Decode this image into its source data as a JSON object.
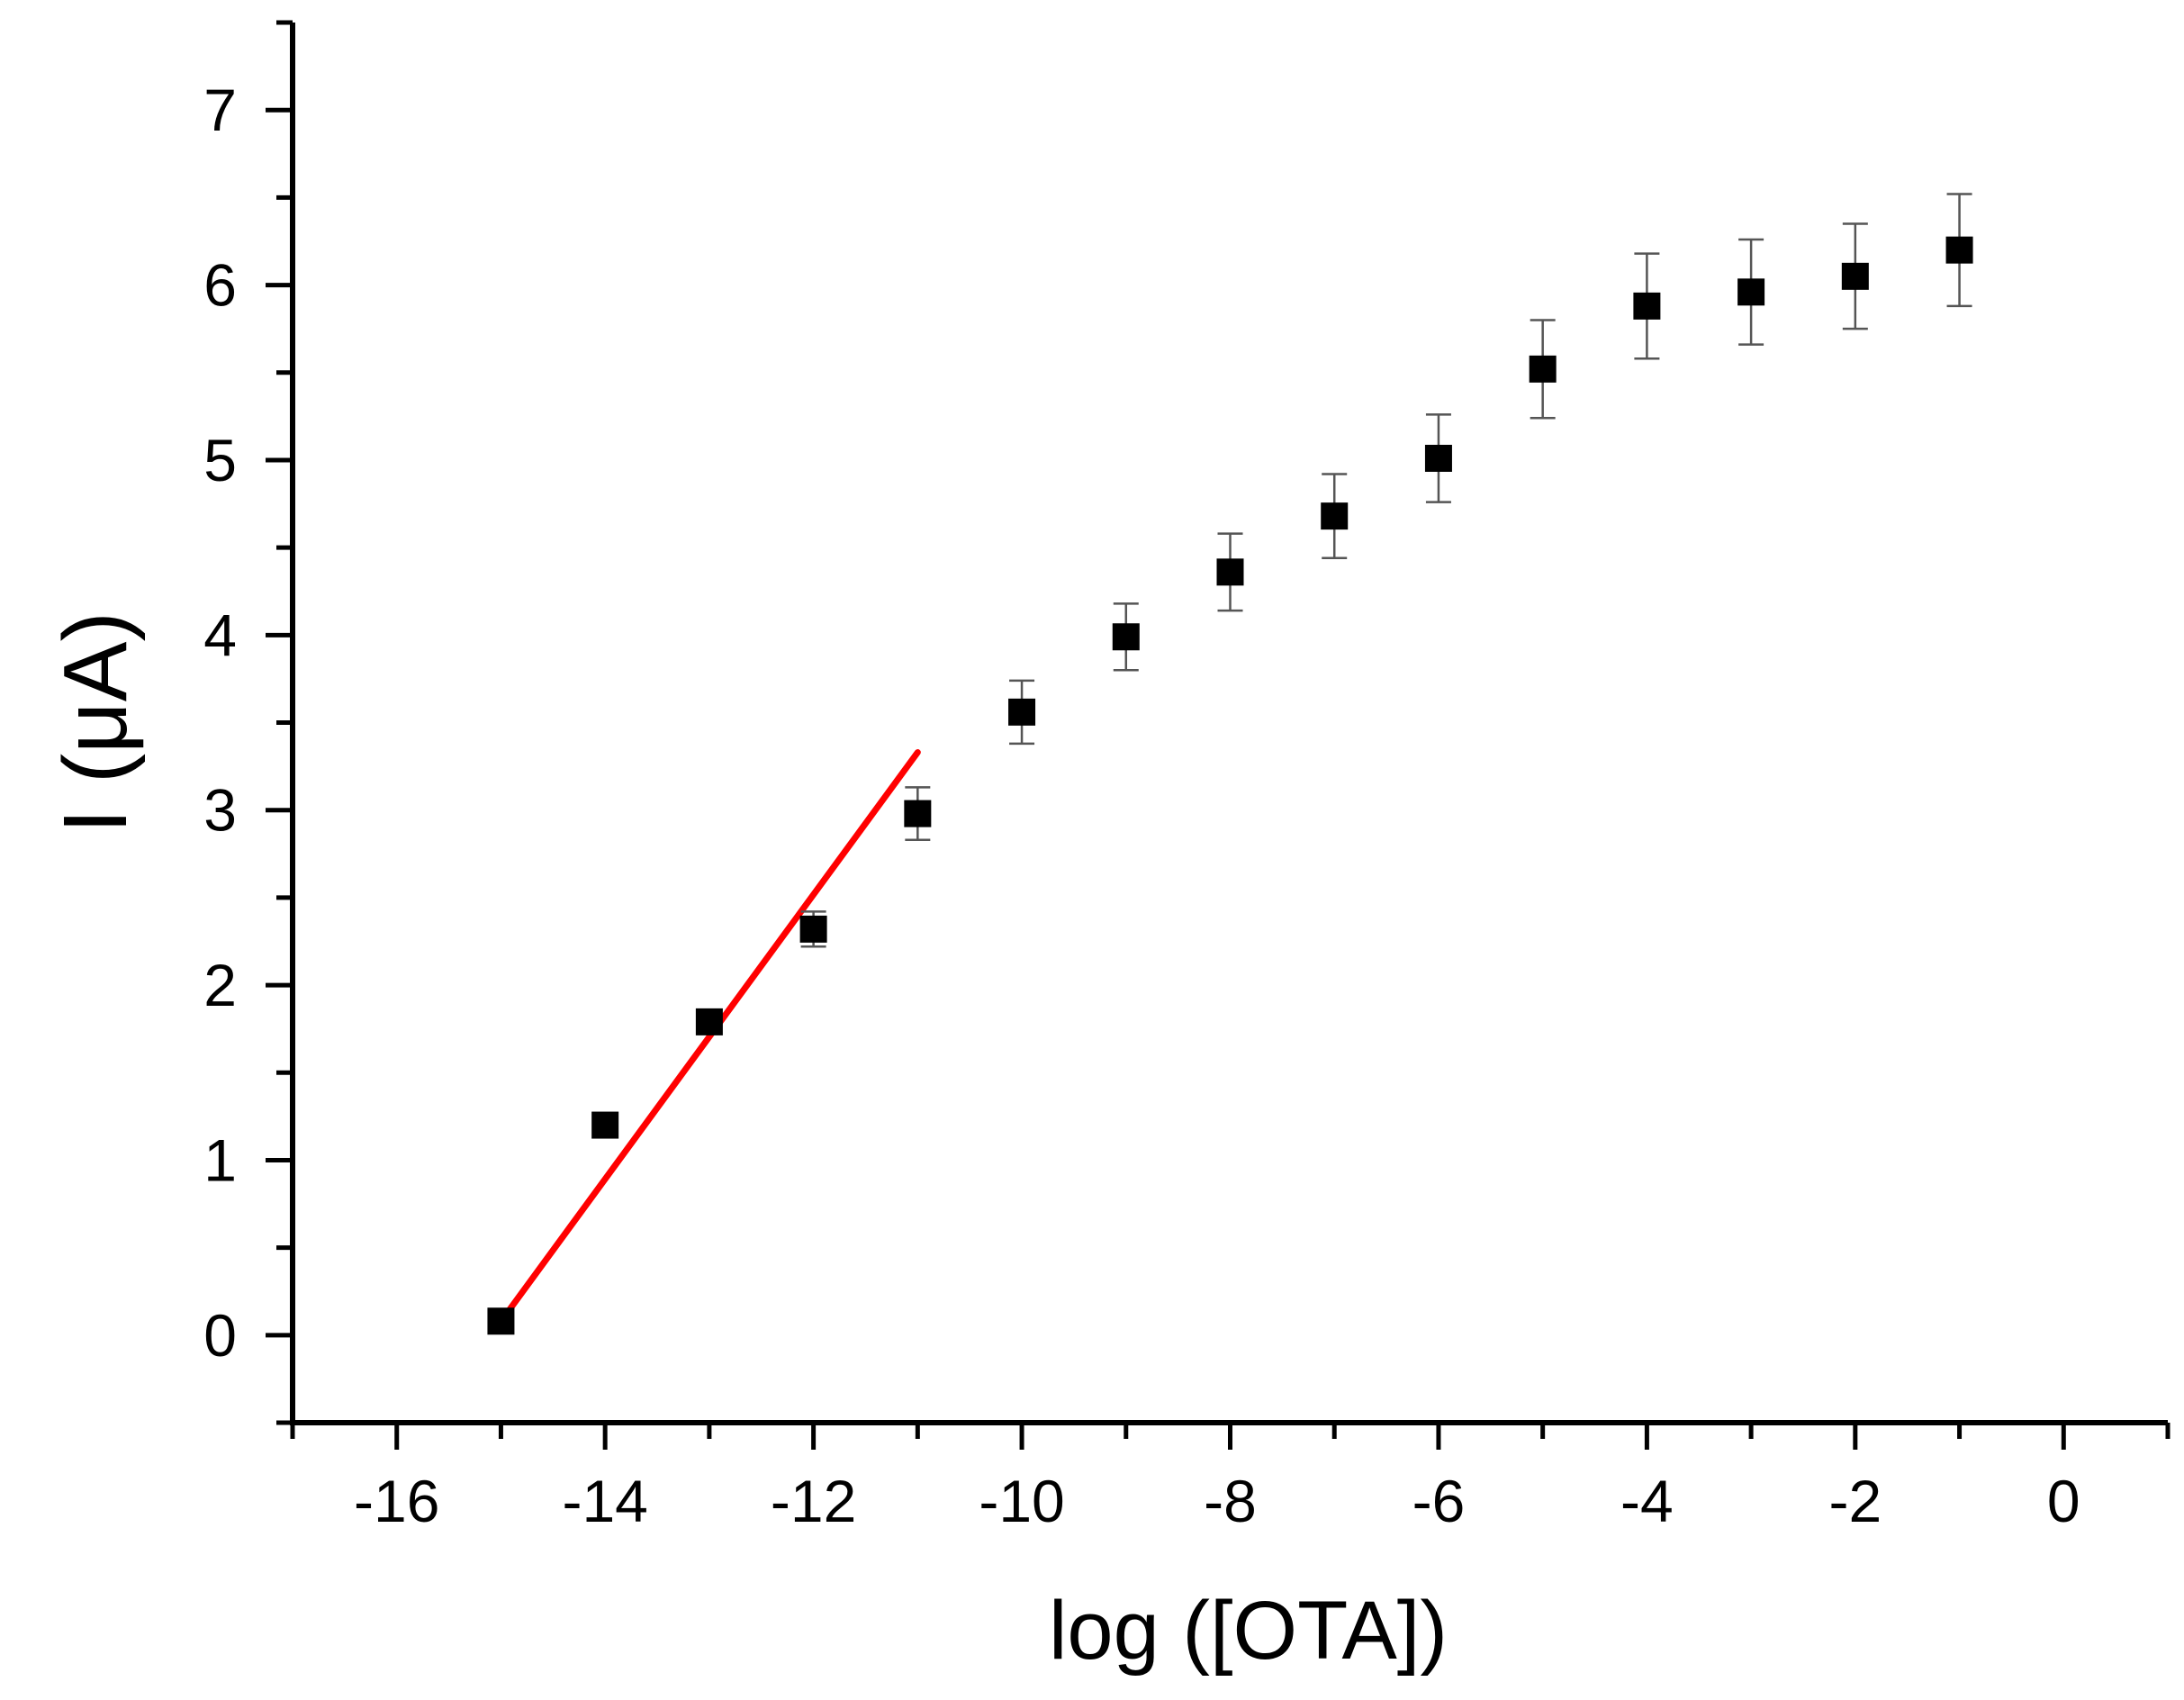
{
  "chart_data": {
    "type": "scatter",
    "xlabel": "log ([OTA])",
    "ylabel": "I (μA)",
    "xlim": [
      -17,
      1
    ],
    "ylim": [
      -0.5,
      7.5
    ],
    "x_ticks": [
      -16,
      -14,
      -12,
      -10,
      -8,
      -6,
      -4,
      -2,
      0
    ],
    "y_ticks": [
      0,
      1,
      2,
      3,
      4,
      5,
      6,
      7
    ],
    "grid": false,
    "legend": "none",
    "series": [
      {
        "marker": "square",
        "color": "#000000",
        "points": [
          {
            "x": -15,
            "y": 0.08,
            "err": 0.0
          },
          {
            "x": -14,
            "y": 1.2,
            "err": 0.0
          },
          {
            "x": -13,
            "y": 1.79,
            "err": 0.0
          },
          {
            "x": -12,
            "y": 2.32,
            "err": 0.1
          },
          {
            "x": -11,
            "y": 2.98,
            "err": 0.15
          },
          {
            "x": -10,
            "y": 3.56,
            "err": 0.18
          },
          {
            "x": -9,
            "y": 3.99,
            "err": 0.19
          },
          {
            "x": -8,
            "y": 4.36,
            "err": 0.22
          },
          {
            "x": -7,
            "y": 4.68,
            "err": 0.24
          },
          {
            "x": -6,
            "y": 5.01,
            "err": 0.25
          },
          {
            "x": -5,
            "y": 5.52,
            "err": 0.28
          },
          {
            "x": -4,
            "y": 5.88,
            "err": 0.3
          },
          {
            "x": -3,
            "y": 5.96,
            "err": 0.3
          },
          {
            "x": -2,
            "y": 6.05,
            "err": 0.3
          },
          {
            "x": -1,
            "y": 6.2,
            "err": 0.32
          }
        ]
      }
    ],
    "fit_line": {
      "color": "#ff0000",
      "x": [
        -15,
        -11
      ],
      "y": [
        0.08,
        3.33
      ]
    }
  }
}
